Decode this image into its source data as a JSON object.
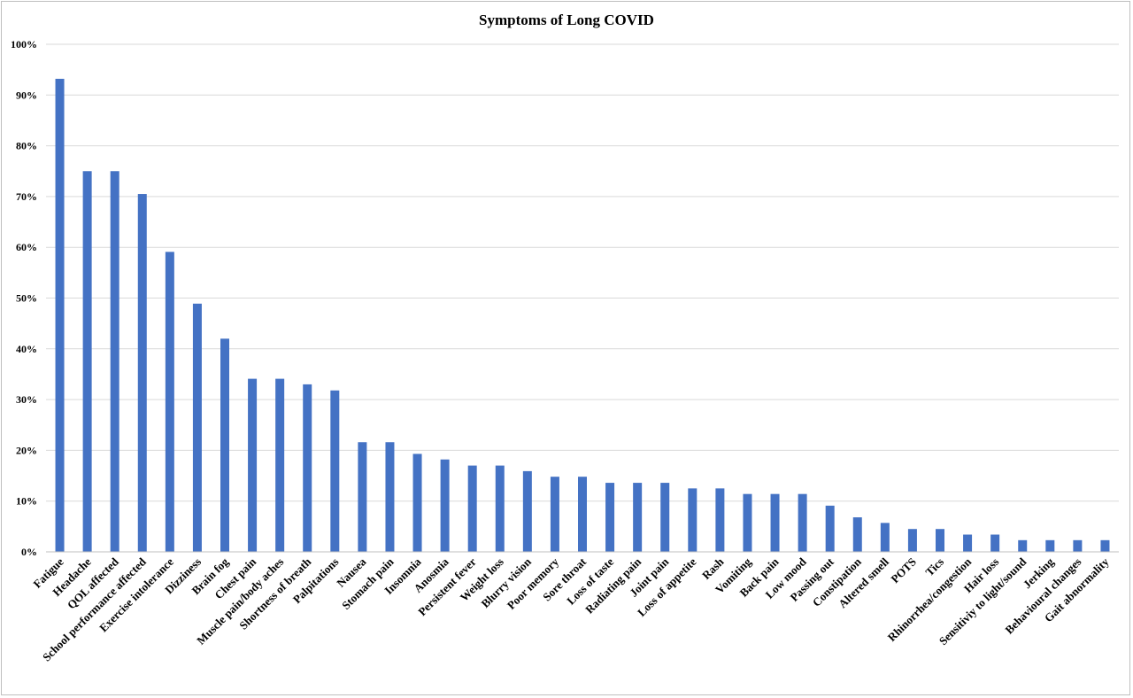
{
  "chart_data": {
    "type": "bar",
    "title": "Symptoms of Long COVID",
    "xlabel": "",
    "ylabel": "",
    "ylim": [
      0,
      100
    ],
    "yticks": [
      "0%",
      "10%",
      "20%",
      "30%",
      "40%",
      "50%",
      "60%",
      "70%",
      "80%",
      "90%",
      "100%"
    ],
    "grid": true,
    "legend": "none",
    "bar_color": "#4472c4",
    "categories": [
      "Fatigue",
      "Headache",
      "QOL affected",
      "School performance affected",
      "Exercise intolerance",
      "Dizziness",
      "Brain fog",
      "Chest pain",
      "Muscle pain/body aches",
      "Shortness of breath",
      "Palpitations",
      "Nausea",
      "Stomach pain",
      "Insomnia",
      "Anosmia",
      "Persistent fever",
      "Weight loss",
      "Blurry vision",
      "Poor memory",
      "Sore throat",
      "Loss of taste",
      "Radiating pain",
      "Joint pain",
      "Loss of appetite",
      "Rash",
      "Vomiting",
      "Back pain",
      "Low mood",
      "Passing out",
      "Constipation",
      "Altered smell",
      "POTS",
      "Tics",
      "Rhinorrhea/congestion",
      "Hair loss",
      "Sensitiviy to light/sound",
      "Jerking",
      "Behavioural changes",
      "Gait abnormality"
    ],
    "values": [
      93.2,
      75.0,
      75.0,
      70.5,
      59.1,
      48.9,
      42.0,
      34.1,
      34.1,
      33.0,
      31.8,
      21.6,
      21.6,
      19.3,
      18.2,
      17.0,
      17.0,
      15.9,
      14.8,
      14.8,
      13.6,
      13.6,
      13.6,
      12.5,
      12.5,
      11.4,
      11.4,
      11.4,
      9.1,
      6.8,
      5.7,
      4.5,
      4.5,
      3.4,
      3.4,
      2.3,
      2.3,
      2.3,
      2.3
    ]
  }
}
